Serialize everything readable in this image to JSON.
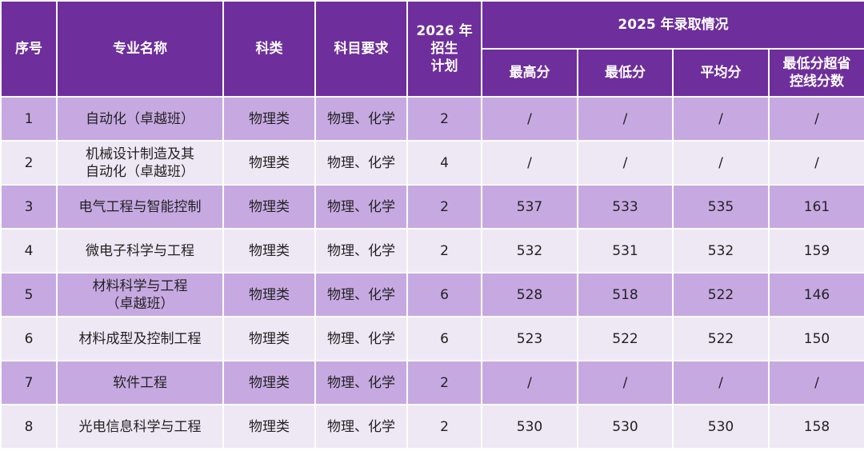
{
  "table": {
    "header": {
      "row1": [
        "序号",
        "专业名称",
        "科类",
        "科目要求",
        "2026 年\n招生\n计划",
        "2025 年录取情况"
      ],
      "row2": [
        "最高分",
        "最低分",
        "平均分",
        "最低分超省\n控线分数"
      ]
    },
    "rows": [
      [
        1,
        "自动化（卓越班）",
        "物理类",
        "物理、化学",
        2,
        "/",
        "/",
        "/",
        "/"
      ],
      [
        2,
        "机械设计制造及其\n自动化（卓越班）",
        "物理类",
        "物理、化学",
        4,
        "/",
        "/",
        "/",
        "/"
      ],
      [
        3,
        "电气工程与智能控制",
        "物理类",
        "物理、化学",
        2,
        537,
        533,
        535,
        161
      ],
      [
        4,
        "微电子科学与工程",
        "物理类",
        "物理、化学",
        2,
        532,
        531,
        532,
        159
      ],
      [
        5,
        "材料科学与工程\n（卓越班）",
        "物理类",
        "物理、化学",
        6,
        528,
        518,
        522,
        146
      ],
      [
        6,
        "材料成型及控制工程",
        "物理类",
        "物理、化学",
        6,
        523,
        522,
        522,
        150
      ],
      [
        7,
        "软件工程",
        "物理类",
        "物理、化学",
        2,
        "/",
        "/",
        "/",
        "/"
      ],
      [
        8,
        "光电信息科学与工程",
        "物理类",
        "物理、化学",
        2,
        530,
        530,
        530,
        158
      ]
    ]
  }
}
